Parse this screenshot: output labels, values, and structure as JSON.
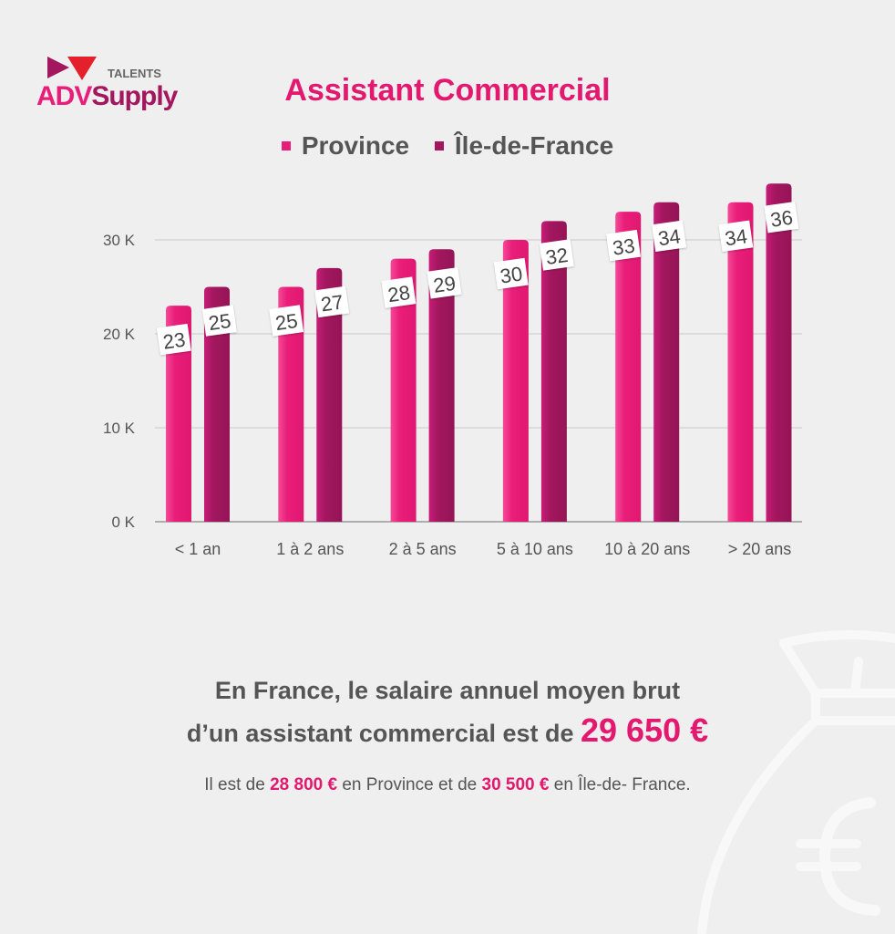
{
  "logo": {
    "top_text": "TALENTS",
    "brand_a": "ADV",
    "brand_b": "Supply"
  },
  "chart_data": {
    "type": "bar",
    "title": "Assistant Commercial",
    "categories": [
      "< 1 an",
      "1 à 2 ans",
      "2 à 5 ans",
      "5 à 10 ans",
      "10 à 20 ans",
      ">  20 ans"
    ],
    "series": [
      {
        "name": "Province",
        "values": [
          23,
          25,
          28,
          30,
          33,
          34
        ],
        "color": "#e91e7a"
      },
      {
        "name": "Île-de-France",
        "values": [
          25,
          27,
          29,
          32,
          34,
          36
        ],
        "color": "#a3175f"
      }
    ],
    "yticks": [
      0,
      10,
      20,
      30
    ],
    "ytick_labels": [
      "0 K",
      "10 K",
      "20 K",
      "30 K"
    ],
    "ylim": [
      0,
      36
    ],
    "grid": true,
    "legend_placement": "top",
    "unit": "K€"
  },
  "summary": {
    "line1": "En France, le salaire annuel moyen brut",
    "line2": "d’un assistant commercial est de ",
    "amount": "29 650 €"
  },
  "detail": {
    "p1": "Il est de ",
    "province_amount": "28 800 €",
    "p2": " en Province et de ",
    "idf_amount": "30 500 €",
    "p3": " en Île-de- France."
  }
}
